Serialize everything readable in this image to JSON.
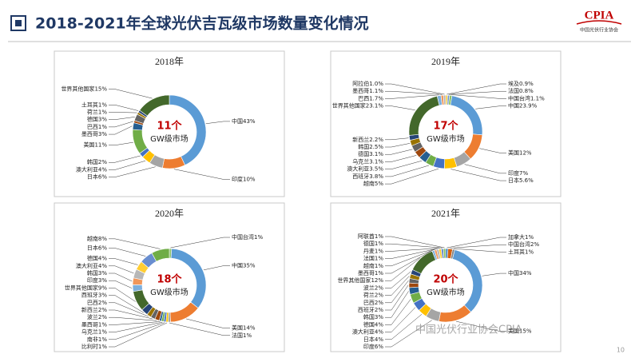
{
  "header": {
    "title": "2018-2021年全球光伏吉瓦级市场数量变化情况",
    "logo": "CPIA",
    "logo_sub": "中国光伏行业协会"
  },
  "page_number": "10",
  "watermark": "中国光伏行业协会CPIA",
  "chart_data": [
    {
      "type": "pie",
      "donut": true,
      "title": "2018年",
      "center_label": "11个",
      "center_sublabel": "GW级市场",
      "categories": [
        "中国",
        "印度",
        "日本",
        "澳大利亚",
        "韩国",
        "美国",
        "墨西哥",
        "巴西",
        "德国",
        "荷兰",
        "土耳其",
        "世界其他国家"
      ],
      "values": [
        43,
        10,
        6,
        4,
        2,
        11,
        3,
        1,
        3,
        1,
        1,
        15
      ],
      "value_labels": [
        "43%",
        "10%",
        "6%",
        "4%",
        "2%",
        "11%",
        "3%",
        "1%",
        "3%",
        "1%",
        "1%",
        "15%"
      ],
      "colors": [
        "#5b9bd5",
        "#ed7d31",
        "#a5a5a5",
        "#ffc000",
        "#4472c4",
        "#70ad47",
        "#255e91",
        "#9e480e",
        "#636363",
        "#997300",
        "#264478",
        "#43682b"
      ]
    },
    {
      "type": "pie",
      "donut": true,
      "title": "2019年",
      "center_label": "17个",
      "center_sublabel": "GW级市场",
      "categories": [
        "埃及",
        "法国",
        "中国台湾",
        "中国",
        "美国",
        "印度",
        "日本",
        "越南",
        "西班牙",
        "澳大利亚",
        "乌克兰",
        "德国",
        "韩国",
        "新西兰",
        "世界其他国家",
        "巴西",
        "墨西哥",
        "阿拉伯"
      ],
      "values": [
        0.9,
        0.8,
        1.1,
        23.9,
        12,
        7,
        5.6,
        5,
        3.8,
        3.5,
        3.1,
        3.1,
        2.5,
        2.2,
        23.1,
        1.7,
        1.1,
        1.0
      ],
      "value_labels": [
        "0.9%",
        "0.8%",
        "1.1%",
        "23.9%",
        "12%",
        "7%",
        "5.6%",
        "5%",
        "3.8%",
        "3.5%",
        "3.1%",
        "3.1%",
        "2.5%",
        "2.2%",
        "23.1%",
        "1.7%",
        "1.1%",
        "1.0%"
      ],
      "colors": [
        "#ffcd33",
        "#698ed0",
        "#8cc168",
        "#5b9bd5",
        "#ed7d31",
        "#a5a5a5",
        "#ffc000",
        "#4472c4",
        "#70ad47",
        "#255e91",
        "#9e480e",
        "#636363",
        "#997300",
        "#264478",
        "#43682b",
        "#7cafdd",
        "#f1975a",
        "#b7b7b7"
      ]
    },
    {
      "type": "pie",
      "donut": true,
      "title": "2020年",
      "center_label": "18个",
      "center_sublabel": "GW级市场",
      "categories": [
        "中国台湾",
        "中国",
        "美国",
        "法国",
        "比利时",
        "南非",
        "乌克兰",
        "墨西哥",
        "波兰",
        "新西兰",
        "巴西",
        "西班牙",
        "世界其他国家",
        "印度",
        "韩国",
        "澳大利亚",
        "德国",
        "日本",
        "越南"
      ],
      "values": [
        1,
        35,
        14,
        1,
        1,
        1,
        1,
        1,
        2,
        2,
        2,
        3,
        9,
        3,
        3,
        4,
        4,
        6,
        8
      ],
      "value_labels": [
        "1%",
        "35%",
        "14%",
        "1%",
        "1%",
        "1%",
        "1%",
        "1%",
        "2%",
        "2%",
        "2%",
        "3%",
        "9%",
        "3%",
        "3%",
        "4%",
        "4%",
        "6%",
        "8%"
      ],
      "colors": [
        "#8cc168",
        "#5b9bd5",
        "#ed7d31",
        "#a5a5a5",
        "#ffc000",
        "#4472c4",
        "#70ad47",
        "#255e91",
        "#9e480e",
        "#636363",
        "#997300",
        "#264478",
        "#43682b",
        "#7cafdd",
        "#f1975a",
        "#b7b7b7",
        "#ffcd33",
        "#698ed0",
        "#70ad47"
      ]
    },
    {
      "type": "pie",
      "donut": true,
      "title": "2021年",
      "center_label": "20个",
      "center_sublabel": "GW级市场",
      "categories": [
        "加拿大",
        "中国台湾",
        "土耳其",
        "中国",
        "美国",
        "印度",
        "日本",
        "澳大利亚",
        "德国",
        "韩国",
        "西班牙",
        "巴西",
        "荷兰",
        "波兰",
        "世界其他国家",
        "墨西哥",
        "越南",
        "法国",
        "丹麦",
        "德国",
        "阿联酋"
      ],
      "values": [
        1,
        2,
        1,
        34,
        15,
        6,
        4,
        4,
        4,
        3,
        2,
        2,
        2,
        2,
        12,
        1,
        1,
        1,
        1,
        1,
        1
      ],
      "value_labels": [
        "1%",
        "2%",
        "1%",
        "34%",
        "15%",
        "6%",
        "4%",
        "4%",
        "4%",
        "3%",
        "2%",
        "2%",
        "2%",
        "2%",
        "12%",
        "1%",
        "1%",
        "1%",
        "1%",
        "1%",
        "1%"
      ],
      "colors": [
        "#327dc2",
        "#d26012",
        "#848484",
        "#5b9bd5",
        "#ed7d31",
        "#a5a5a5",
        "#ffc000",
        "#4472c4",
        "#70ad47",
        "#255e91",
        "#9e480e",
        "#636363",
        "#997300",
        "#264478",
        "#43682b",
        "#7cafdd",
        "#f1975a",
        "#b7b7b7",
        "#ffcd33",
        "#698ed0",
        "#8cc168"
      ]
    }
  ]
}
